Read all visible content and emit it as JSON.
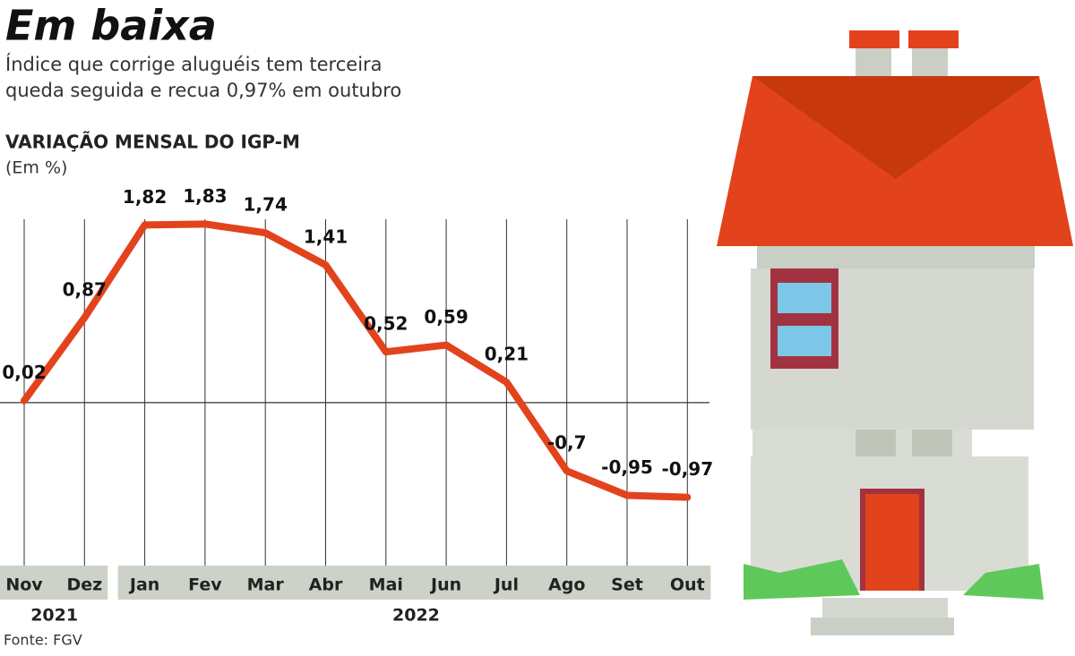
{
  "chart_data": {
    "type": "line",
    "title": "Em baixa",
    "subtitle": "Índice que corrige aluguéis tem terceira queda seguida e recua 0,97% em outubro",
    "chart_title": "VARIAÇÃO MENSAL DO IGP-M",
    "unit_label": "(Em %)",
    "categories": [
      "Nov",
      "Dez",
      "Jan",
      "Fev",
      "Mar",
      "Abr",
      "Mai",
      "Jun",
      "Jul",
      "Ago",
      "Set",
      "Out"
    ],
    "years": [
      "2021",
      "2022"
    ],
    "values": [
      0.02,
      0.87,
      1.82,
      1.83,
      1.74,
      1.41,
      0.52,
      0.59,
      0.21,
      -0.7,
      -0.95,
      -0.97
    ],
    "value_labels": [
      "0,02",
      "0,87",
      "1,82",
      "1,83",
      "1,74",
      "1,41",
      "0,52",
      "0,59",
      "0,21",
      "-0,7",
      "-0,95",
      "-0,97"
    ],
    "color": "#e2431c",
    "ylim": [
      -1.67,
      2.2
    ],
    "source": "Fonte: FGV"
  }
}
